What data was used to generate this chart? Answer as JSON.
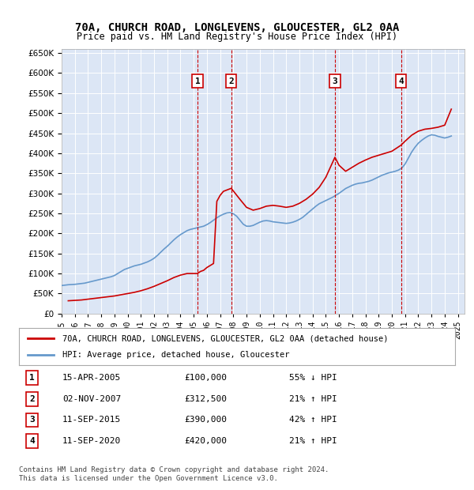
{
  "title": "70A, CHURCH ROAD, LONGLEVENS, GLOUCESTER, GL2 0AA",
  "subtitle": "Price paid vs. HM Land Registry's House Price Index (HPI)",
  "ylabel": "",
  "xlabel": "",
  "ylim": [
    0,
    660000
  ],
  "yticks": [
    0,
    50000,
    100000,
    150000,
    200000,
    250000,
    300000,
    350000,
    400000,
    450000,
    500000,
    550000,
    600000,
    650000
  ],
  "ytick_labels": [
    "£0",
    "£50K",
    "£100K",
    "£150K",
    "£200K",
    "£250K",
    "£300K",
    "£350K",
    "£400K",
    "£450K",
    "£500K",
    "£550K",
    "£600K",
    ""
  ],
  "xlim_start": 1995.0,
  "xlim_end": 2025.5,
  "hpi_color": "#6699cc",
  "price_color": "#cc0000",
  "bg_color": "#dce6f5",
  "plot_bg": "#dce6f5",
  "transactions": [
    {
      "num": 1,
      "date": "15-APR-2005",
      "price": 100000,
      "pct": "55%",
      "dir": "↓",
      "year": 2005.29
    },
    {
      "num": 2,
      "date": "02-NOV-2007",
      "price": 312500,
      "pct": "21%",
      "dir": "↑",
      "year": 2007.84
    },
    {
      "num": 3,
      "date": "11-SEP-2015",
      "price": 390000,
      "pct": "42%",
      "dir": "↑",
      "year": 2015.69
    },
    {
      "num": 4,
      "date": "11-SEP-2020",
      "price": 420000,
      "pct": "21%",
      "dir": "↑",
      "year": 2020.69
    }
  ],
  "legend_line1": "70A, CHURCH ROAD, LONGLEVENS, GLOUCESTER, GL2 0AA (detached house)",
  "legend_line2": "HPI: Average price, detached house, Gloucester",
  "footer1": "Contains HM Land Registry data © Crown copyright and database right 2024.",
  "footer2": "This data is licensed under the Open Government Licence v3.0.",
  "hpi_data_x": [
    1995.0,
    1995.25,
    1995.5,
    1995.75,
    1996.0,
    1996.25,
    1996.5,
    1996.75,
    1997.0,
    1997.25,
    1997.5,
    1997.75,
    1998.0,
    1998.25,
    1998.5,
    1998.75,
    1999.0,
    1999.25,
    1999.5,
    1999.75,
    2000.0,
    2000.25,
    2000.5,
    2000.75,
    2001.0,
    2001.25,
    2001.5,
    2001.75,
    2002.0,
    2002.25,
    2002.5,
    2002.75,
    2003.0,
    2003.25,
    2003.5,
    2003.75,
    2004.0,
    2004.25,
    2004.5,
    2004.75,
    2005.0,
    2005.25,
    2005.5,
    2005.75,
    2006.0,
    2006.25,
    2006.5,
    2006.75,
    2007.0,
    2007.25,
    2007.5,
    2007.75,
    2008.0,
    2008.25,
    2008.5,
    2008.75,
    2009.0,
    2009.25,
    2009.5,
    2009.75,
    2010.0,
    2010.25,
    2010.5,
    2010.75,
    2011.0,
    2011.25,
    2011.5,
    2011.75,
    2012.0,
    2012.25,
    2012.5,
    2012.75,
    2013.0,
    2013.25,
    2013.5,
    2013.75,
    2014.0,
    2014.25,
    2014.5,
    2014.75,
    2015.0,
    2015.25,
    2015.5,
    2015.75,
    2016.0,
    2016.25,
    2016.5,
    2016.75,
    2017.0,
    2017.25,
    2017.5,
    2017.75,
    2018.0,
    2018.25,
    2018.5,
    2018.75,
    2019.0,
    2019.25,
    2019.5,
    2019.75,
    2020.0,
    2020.25,
    2020.5,
    2020.75,
    2021.0,
    2021.25,
    2021.5,
    2021.75,
    2022.0,
    2022.25,
    2022.5,
    2022.75,
    2023.0,
    2023.25,
    2023.5,
    2023.75,
    2024.0,
    2024.25,
    2024.5
  ],
  "hpi_data_y": [
    70000,
    71000,
    72000,
    72500,
    73000,
    74000,
    75000,
    76000,
    78000,
    80000,
    82000,
    84000,
    86000,
    88000,
    90000,
    92000,
    95000,
    100000,
    105000,
    110000,
    113000,
    116000,
    119000,
    121000,
    123000,
    126000,
    129000,
    133000,
    138000,
    145000,
    153000,
    161000,
    168000,
    176000,
    184000,
    191000,
    197000,
    202000,
    207000,
    210000,
    212000,
    214000,
    216000,
    218000,
    222000,
    227000,
    233000,
    239000,
    244000,
    248000,
    251000,
    252000,
    249000,
    243000,
    233000,
    223000,
    218000,
    218000,
    220000,
    224000,
    228000,
    231000,
    232000,
    231000,
    229000,
    228000,
    227000,
    226000,
    225000,
    226000,
    228000,
    231000,
    235000,
    240000,
    247000,
    254000,
    261000,
    268000,
    274000,
    278000,
    282000,
    286000,
    290000,
    295000,
    300000,
    306000,
    312000,
    316000,
    320000,
    323000,
    325000,
    326000,
    328000,
    330000,
    333000,
    337000,
    341000,
    345000,
    348000,
    351000,
    353000,
    355000,
    358000,
    363000,
    373000,
    388000,
    403000,
    415000,
    425000,
    432000,
    438000,
    443000,
    446000,
    445000,
    442000,
    440000,
    438000,
    440000,
    443000
  ],
  "price_data_x": [
    1995.5,
    1996.0,
    1996.5,
    1997.0,
    1997.5,
    1998.0,
    1998.5,
    1999.0,
    1999.5,
    2000.0,
    2000.5,
    2001.0,
    2001.5,
    2002.0,
    2002.5,
    2003.0,
    2003.5,
    2004.0,
    2004.5,
    2005.0,
    2005.29,
    2005.5,
    2005.75,
    2006.0,
    2006.25,
    2006.5,
    2006.75,
    2007.0,
    2007.25,
    2007.84,
    2008.5,
    2009.0,
    2009.5,
    2010.0,
    2010.5,
    2011.0,
    2011.5,
    2012.0,
    2012.5,
    2013.0,
    2013.5,
    2014.0,
    2014.5,
    2015.0,
    2015.69,
    2016.0,
    2016.5,
    2017.0,
    2017.5,
    2018.0,
    2018.5,
    2019.0,
    2019.5,
    2020.0,
    2020.69,
    2021.0,
    2021.5,
    2022.0,
    2022.5,
    2023.0,
    2023.5,
    2024.0,
    2024.5
  ],
  "price_data_y": [
    32000,
    33000,
    34000,
    36000,
    38000,
    40000,
    42000,
    44000,
    47000,
    50000,
    53000,
    57000,
    62000,
    68000,
    75000,
    82000,
    90000,
    96000,
    100000,
    100000,
    100000,
    105000,
    108000,
    115000,
    120000,
    125000,
    280000,
    295000,
    305000,
    312500,
    285000,
    265000,
    258000,
    262000,
    268000,
    270000,
    268000,
    265000,
    268000,
    275000,
    285000,
    298000,
    315000,
    340000,
    390000,
    370000,
    355000,
    365000,
    375000,
    383000,
    390000,
    395000,
    400000,
    405000,
    420000,
    430000,
    445000,
    455000,
    460000,
    462000,
    465000,
    470000,
    510000
  ]
}
